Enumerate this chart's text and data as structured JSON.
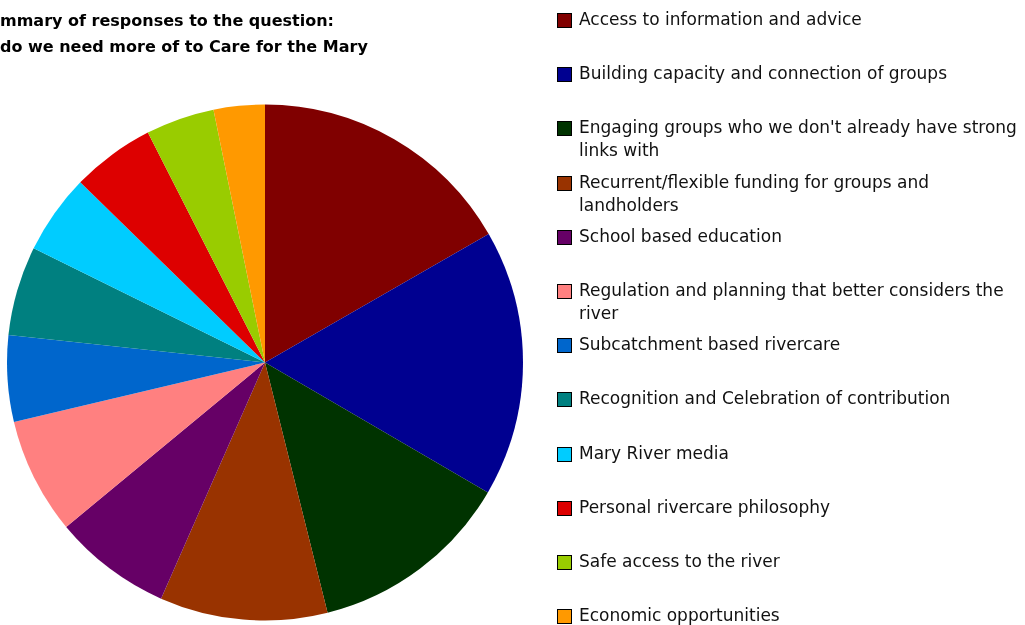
{
  "chart_data": {
    "type": "pie",
    "title": "mmary of responses to the question:\ndo we need more of to Care for the Mary",
    "categories": [
      "Access to information and advice",
      "Building capacity and connection of groups",
      "Engaging groups who we don't already have strong links with",
      "Recurrent/flexible funding for groups and landholders",
      "School based education",
      "Regulation and planning that better considers the river",
      "Subcatchment based rivercare",
      "Recognition and Celebration of contribution",
      "Mary River media",
      "Personal rivercare philosophy",
      "Safe access to the river",
      "Economic opportunities"
    ],
    "values": [
      16.7,
      16.7,
      12.7,
      10.5,
      7.4,
      7.3,
      5.4,
      5.6,
      5.0,
      5.2,
      4.3,
      3.2
    ],
    "colors": [
      "#800000",
      "#000090",
      "#003300",
      "#993300",
      "#660066",
      "#ff8080",
      "#0066cc",
      "#008080",
      "#00ccff",
      "#dd0000",
      "#99cc00",
      "#ff9900"
    ],
    "legend": "right"
  }
}
